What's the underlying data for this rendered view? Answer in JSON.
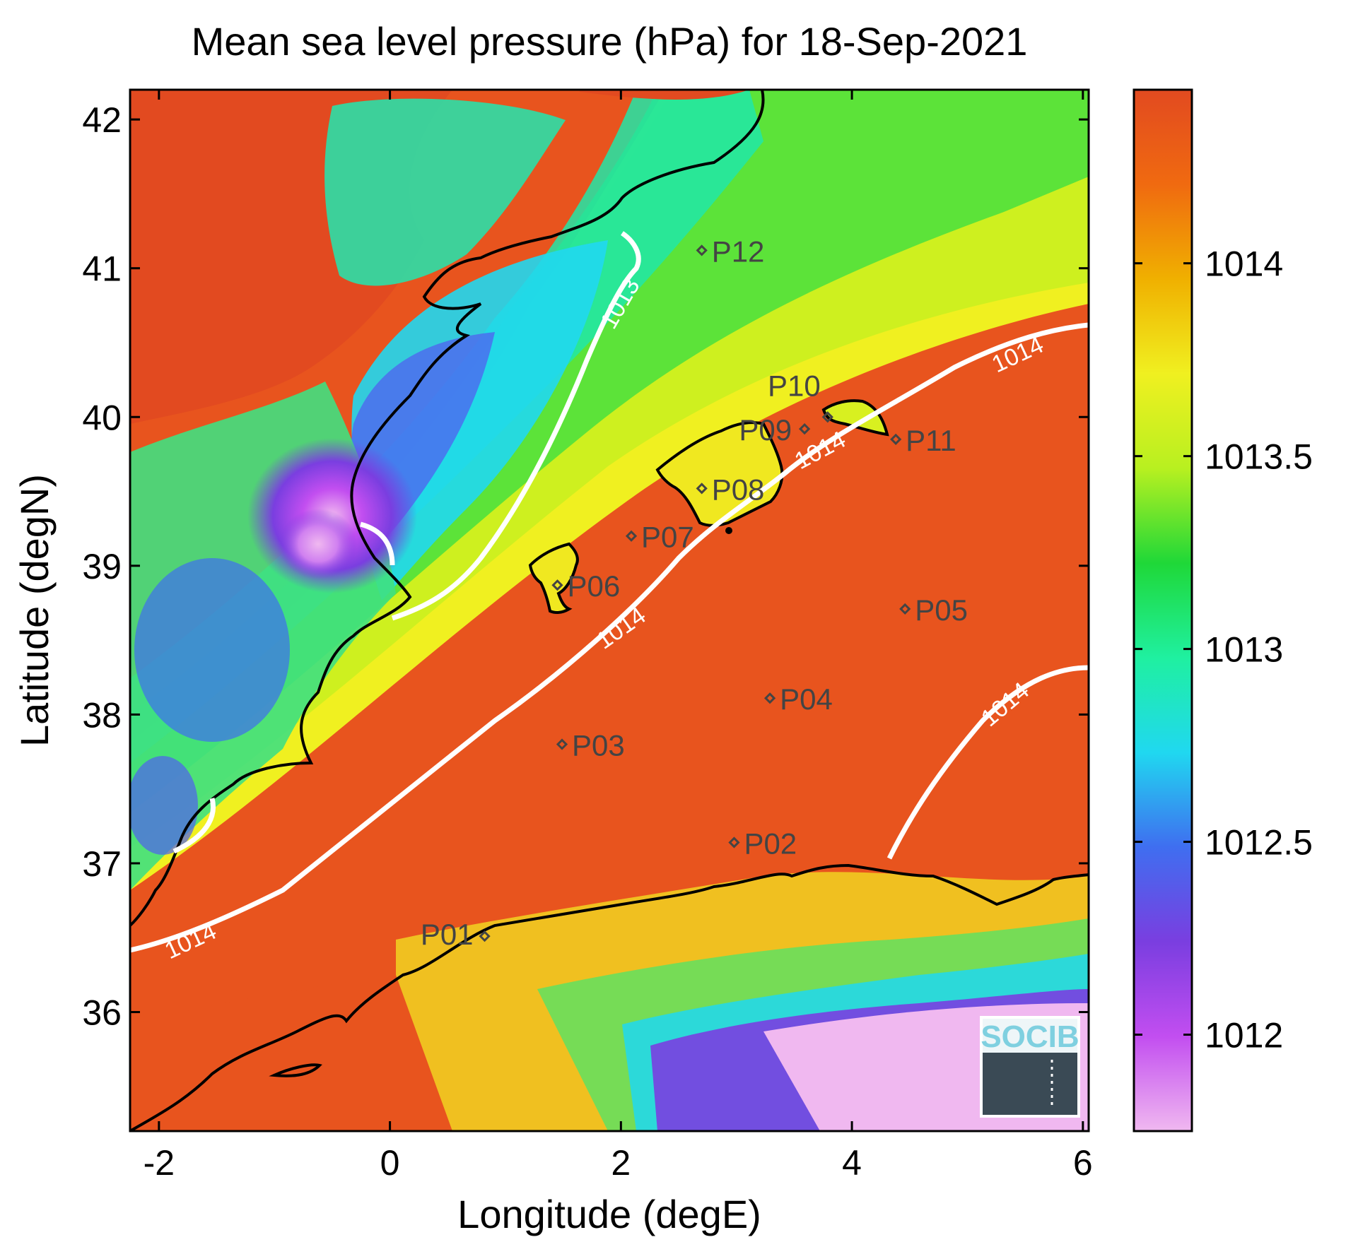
{
  "title": "Mean sea level pressure (hPa) for 18-Sep-2021",
  "xlabel": "Longitude (degE)",
  "ylabel": "Latitude (degN)",
  "xlim": [
    -2.25,
    6.05
  ],
  "ylim": [
    35.2,
    42.2
  ],
  "xticks": [
    -2,
    0,
    2,
    4,
    6
  ],
  "yticks": [
    36,
    37,
    38,
    39,
    40,
    41,
    42
  ],
  "colorbar": {
    "range": [
      1011.75,
      1014.45
    ],
    "ticks": [
      1012,
      1012.5,
      1013,
      1013.5,
      1014
    ],
    "tick_labels": [
      "1012",
      "1012.5",
      "1013",
      "1013.5",
      "1014"
    ],
    "colors": [
      "#f0b8f0",
      "#c24ef0",
      "#7a3ee0",
      "#3f6ef0",
      "#20d8f0",
      "#1ff0a0",
      "#1fd838",
      "#b8f020",
      "#f0f020",
      "#f0b000",
      "#f06a10",
      "#e24a20"
    ]
  },
  "points": [
    {
      "label": "P01",
      "lon": 0.82,
      "lat": 36.51
    },
    {
      "label": "P02",
      "lon": 2.98,
      "lat": 37.14
    },
    {
      "label": "P03",
      "lon": 1.49,
      "lat": 37.8
    },
    {
      "label": "P04",
      "lon": 3.29,
      "lat": 38.11
    },
    {
      "label": "P05",
      "lon": 4.46,
      "lat": 38.71
    },
    {
      "label": "P06",
      "lon": 1.45,
      "lat": 38.87
    },
    {
      "label": "P07",
      "lon": 2.09,
      "lat": 39.2
    },
    {
      "label": "P08",
      "lon": 2.7,
      "lat": 39.52
    },
    {
      "label": "P09",
      "lon": 3.59,
      "lat": 39.92
    },
    {
      "label": "P10",
      "lon": 3.79,
      "lat": 40.0
    },
    {
      "label": "P11",
      "lon": 4.38,
      "lat": 39.85
    },
    {
      "label": "P12",
      "lon": 2.7,
      "lat": 41.12
    }
  ],
  "contours": [
    {
      "level": "1013",
      "label": "1013"
    },
    {
      "level": "1014",
      "label": "1014"
    }
  ],
  "logo_text": "SOCIB",
  "logo_bg": "#3a4a55"
}
